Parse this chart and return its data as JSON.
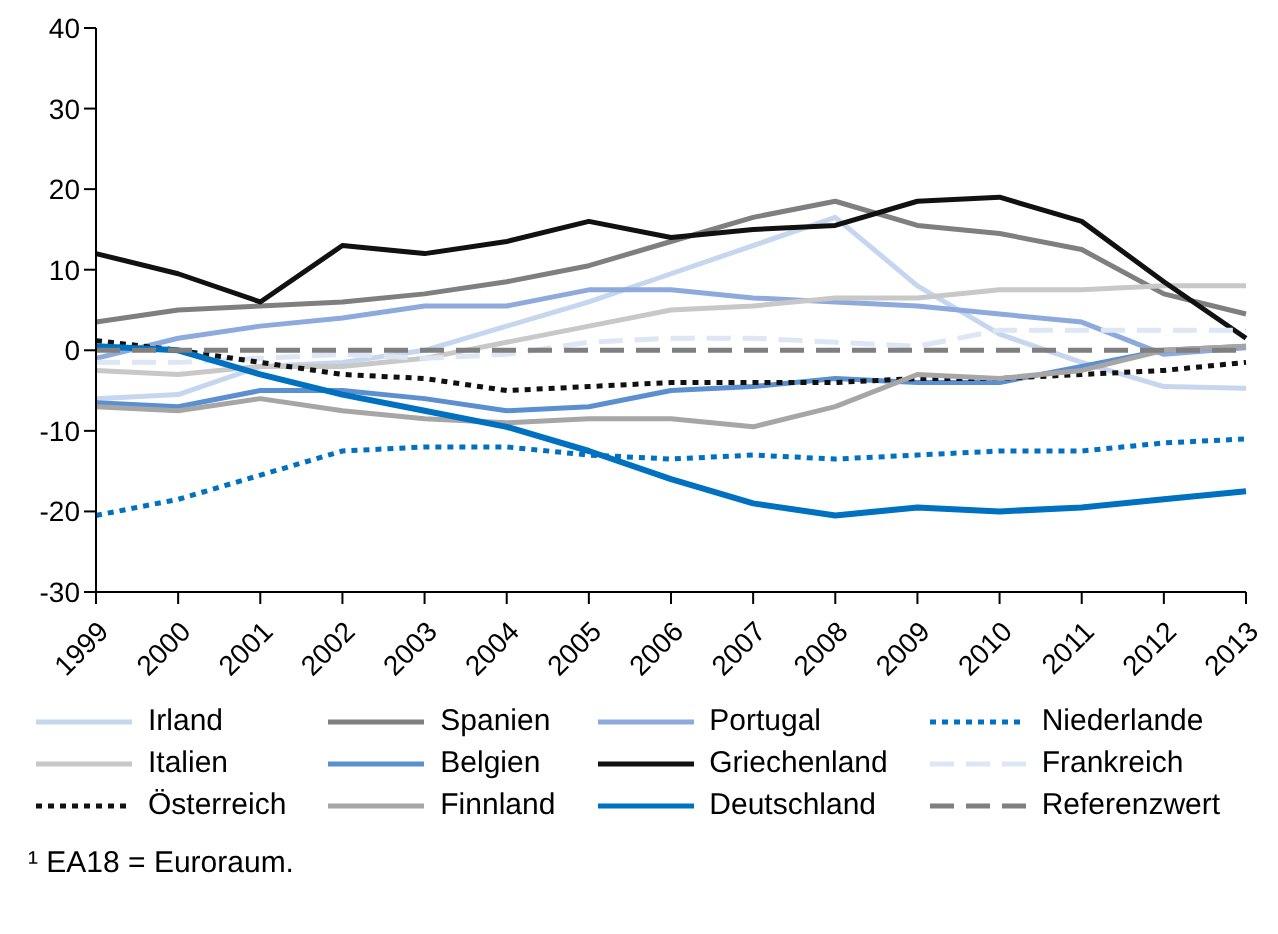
{
  "chart_data": {
    "type": "line",
    "categories": [
      "1999",
      "2000",
      "2001",
      "2002",
      "2003",
      "2004",
      "2005",
      "2006",
      "2007",
      "2008",
      "2009",
      "2010",
      "2011",
      "2012",
      "2013"
    ],
    "ylim": [
      -30,
      40
    ],
    "yticks": [
      -30,
      -20,
      -10,
      0,
      10,
      20,
      30,
      40
    ],
    "legend": "bottom",
    "marker": "none",
    "series": [
      {
        "name": "Irland",
        "color": "#c6d6ef",
        "line_style": "solid",
        "values": [
          -6,
          -5.5,
          -2,
          -1.5,
          0,
          3,
          6,
          9.5,
          13,
          16.5,
          8,
          2,
          -1.5,
          -4.5,
          -4.7
        ]
      },
      {
        "name": "Spanien",
        "color": "#7f7f7f",
        "line_style": "solid",
        "values": [
          3.5,
          5,
          5.5,
          6,
          7,
          8.5,
          10.5,
          13.5,
          16.5,
          18.5,
          15.5,
          14.5,
          12.5,
          7,
          4.5
        ]
      },
      {
        "name": "Portugal",
        "color": "#8eaadc",
        "line_style": "solid",
        "values": [
          -1,
          1.5,
          3,
          4,
          5.5,
          5.5,
          7.5,
          7.5,
          6.5,
          6,
          5.5,
          4.5,
          3.5,
          -0.5,
          0.3
        ]
      },
      {
        "name": "Niederlande",
        "color": "#0070c0",
        "line_style": "dotted",
        "values": [
          -20.5,
          -18.5,
          -15.5,
          -12.5,
          -12,
          -12,
          -13,
          -13.5,
          -13,
          -13.5,
          -13,
          -12.5,
          -12.5,
          -11.5,
          -11
        ]
      },
      {
        "name": "Italien",
        "color": "#c8c8c8",
        "line_style": "solid",
        "values": [
          -2.5,
          -3,
          -2,
          -2,
          -1,
          1,
          3,
          5,
          5.5,
          6.5,
          6.5,
          7.5,
          7.5,
          8,
          8
        ]
      },
      {
        "name": "Belgien",
        "color": "#5b8fd0",
        "line_style": "solid",
        "values": [
          -6.5,
          -7,
          -5,
          -5,
          -6,
          -7.5,
          -7,
          -5,
          -4.5,
          -3.5,
          -4,
          -4,
          -2,
          0,
          0.5
        ]
      },
      {
        "name": "Griechenland",
        "color": "#111111",
        "line_style": "solid",
        "values": [
          12,
          9.5,
          6,
          13,
          12,
          13.5,
          16,
          14,
          15,
          15.5,
          18.5,
          19,
          16,
          8.5,
          1.5
        ]
      },
      {
        "name": "Frankreich",
        "color": "#dde6f5",
        "line_style": "dashed",
        "values": [
          -1.5,
          -1.5,
          -1,
          -0.5,
          -1,
          -0.5,
          1,
          1.5,
          1.5,
          1,
          0.5,
          2.5,
          2.5,
          2.5,
          2.5
        ]
      },
      {
        "name": "Österreich",
        "color": "#111111",
        "line_style": "dotted",
        "values": [
          1.2,
          0,
          -1.5,
          -3,
          -3.5,
          -5,
          -4.5,
          -4,
          -4,
          -4,
          -3.5,
          -3.5,
          -3,
          -2.5,
          -1.5
        ]
      },
      {
        "name": "Finnland",
        "color": "#a6a6a6",
        "line_style": "solid",
        "values": [
          -7,
          -7.5,
          -6,
          -7.5,
          -8.5,
          -9,
          -8.5,
          -8.5,
          -9.5,
          -7,
          -3,
          -3.5,
          -2.5,
          0,
          0.5
        ]
      },
      {
        "name": "Deutschland",
        "color": "#0070c0",
        "line_style": "solid",
        "values": [
          0.5,
          0,
          -3,
          -5.5,
          -7.5,
          -9.5,
          -12.5,
          -16,
          -19,
          -20.5,
          -19.5,
          -20,
          -19.5,
          -18.5,
          -17.5
        ]
      },
      {
        "name": "Referenzwert",
        "color": "#7f7f7f",
        "line_style": "dashed",
        "values": [
          0,
          0,
          0,
          0,
          0,
          0,
          0,
          0,
          0,
          0,
          0,
          0,
          0,
          0,
          0
        ]
      }
    ],
    "annotations": [
      "¹ EA18 = Euroraum."
    ]
  }
}
